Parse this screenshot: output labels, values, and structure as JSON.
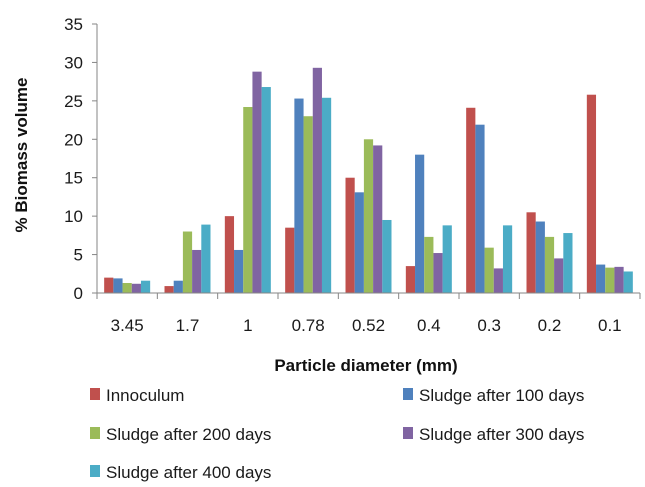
{
  "chart_data": {
    "type": "bar",
    "xlabel": "Particle diameter (mm)",
    "ylabel": "% Biomass volume",
    "categories": [
      "3.45",
      "1.7",
      "1",
      "0.78",
      "0.52",
      "0.4",
      "0.3",
      "0.2",
      "0.1"
    ],
    "ylim": [
      0,
      35
    ],
    "yticks": [
      0,
      5,
      10,
      15,
      20,
      25,
      30,
      35
    ],
    "grid": false,
    "legend_position": "bottom",
    "series": [
      {
        "name": "Innoculum",
        "color": "#c0504d",
        "values": [
          2.0,
          0.9,
          10.0,
          8.5,
          15.0,
          3.5,
          24.1,
          10.5,
          25.8
        ]
      },
      {
        "name": "Sludge after 100 days",
        "color": "#4f81bd",
        "values": [
          1.9,
          1.6,
          5.6,
          25.3,
          13.1,
          18.0,
          21.9,
          9.3,
          3.7
        ]
      },
      {
        "name": "Sludge after 200 days",
        "color": "#9bbb59",
        "values": [
          1.3,
          8.0,
          24.2,
          23.0,
          20.0,
          7.3,
          5.9,
          7.3,
          3.3
        ]
      },
      {
        "name": "Sludge after 300 days",
        "color": "#8064a2",
        "values": [
          1.2,
          5.6,
          28.8,
          29.3,
          19.2,
          5.2,
          3.2,
          4.5,
          3.4
        ]
      },
      {
        "name": "Sludge after 400 days",
        "color": "#4bacc6",
        "values": [
          1.6,
          8.9,
          26.8,
          25.4,
          9.5,
          8.8,
          8.8,
          7.8,
          2.8
        ]
      }
    ]
  }
}
